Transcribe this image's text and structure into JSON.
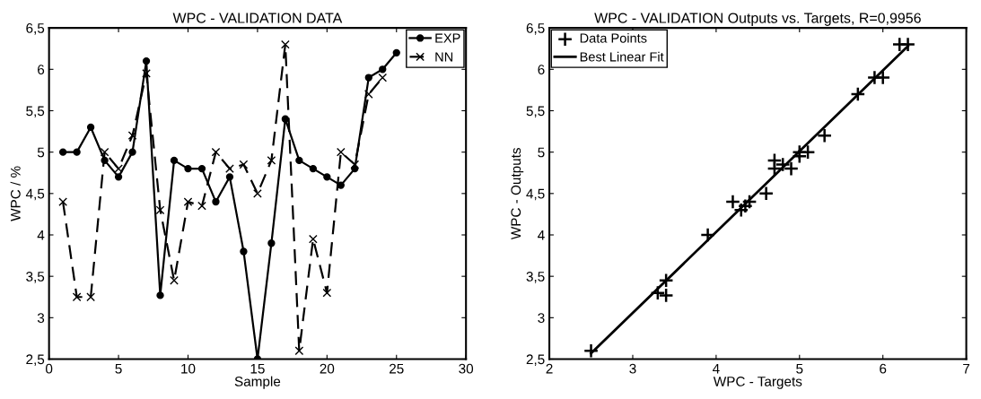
{
  "chart_data": [
    {
      "type": "line",
      "title": "WPC - VALIDATION DATA",
      "xlabel": "Sample",
      "ylabel": "WPC / %",
      "x": [
        1,
        2,
        3,
        4,
        5,
        6,
        7,
        8,
        9,
        10,
        11,
        12,
        13,
        14,
        15,
        16,
        17,
        18,
        19,
        20,
        21,
        22,
        23,
        24,
        25
      ],
      "xlim": [
        0,
        30
      ],
      "xticks": [
        0,
        5,
        10,
        15,
        20,
        25,
        30
      ],
      "ylim": [
        2.5,
        6.5
      ],
      "yticks": [
        {
          "value": 2.5,
          "label": "2,5"
        },
        3,
        {
          "value": 3.5,
          "label": "3,5"
        },
        4,
        {
          "value": 4.5,
          "label": "4,5"
        },
        5,
        {
          "value": 5.5,
          "label": "5,5"
        },
        6,
        {
          "value": 6.5,
          "label": "6,5"
        }
      ],
      "grid": false,
      "legend": "top right",
      "series": [
        {
          "name": "EXP",
          "color": "#000000",
          "marker": "circle",
          "line_style": "solid",
          "values": [
            5.0,
            5.0,
            5.3,
            4.9,
            4.7,
            5.0,
            6.1,
            3.27,
            4.9,
            4.8,
            4.8,
            4.4,
            4.7,
            3.8,
            2.5,
            3.9,
            5.4,
            4.9,
            4.8,
            4.7,
            4.6,
            4.8,
            5.9,
            6.0,
            6.2
          ]
        },
        {
          "name": "NN",
          "color": "#000000",
          "marker": "cross",
          "line_style": "dashed",
          "values": [
            4.4,
            3.25,
            3.25,
            5.0,
            4.8,
            5.2,
            5.95,
            4.3,
            3.45,
            4.4,
            4.35,
            5.0,
            4.8,
            4.85,
            4.5,
            4.9,
            6.3,
            2.6,
            3.95,
            3.3,
            5.0,
            4.85,
            5.7,
            5.9,
            null
          ]
        }
      ]
    },
    {
      "type": "scatter",
      "title": "WPC - VALIDATION Outputs vs. Targets, R=0,9956",
      "xlabel": "WPC - Targets",
      "ylabel": "WPC - Outputs",
      "xlim": [
        2,
        7
      ],
      "xticks": [
        2,
        3,
        4,
        5,
        6,
        7
      ],
      "ylim": [
        2.5,
        6.5
      ],
      "yticks": [
        {
          "value": 2.5,
          "label": "2,5"
        },
        3,
        {
          "value": 3.5,
          "label": "3,5"
        },
        4,
        {
          "value": 4.5,
          "label": "4,5"
        },
        5,
        {
          "value": 5.5,
          "label": "5,5"
        },
        6,
        {
          "value": 6.5,
          "label": "6,5"
        }
      ],
      "grid": false,
      "legend": "top left",
      "series": [
        {
          "name": "Data Points",
          "type": "scatter",
          "color": "#000000",
          "marker": "cross",
          "x": [
            2.5,
            3.3,
            3.4,
            3.4,
            3.9,
            4.2,
            4.3,
            4.35,
            4.4,
            4.6,
            4.7,
            4.7,
            4.8,
            4.9,
            5.0,
            5.0,
            5.1,
            5.3,
            5.7,
            5.9,
            6.0,
            6.2,
            6.3
          ],
          "values": [
            2.6,
            3.3,
            3.27,
            3.45,
            4.0,
            4.4,
            4.3,
            4.35,
            4.4,
            4.5,
            4.8,
            4.9,
            4.85,
            4.8,
            5.0,
            4.95,
            5.0,
            5.2,
            5.7,
            5.9,
            5.9,
            6.3,
            6.3
          ]
        },
        {
          "name": "Best Linear Fit",
          "type": "line",
          "color": "#000000",
          "marker": "none",
          "line_style": "solid",
          "x": [
            2.5,
            6.3
          ],
          "values": [
            2.57,
            6.28
          ]
        }
      ]
    }
  ]
}
